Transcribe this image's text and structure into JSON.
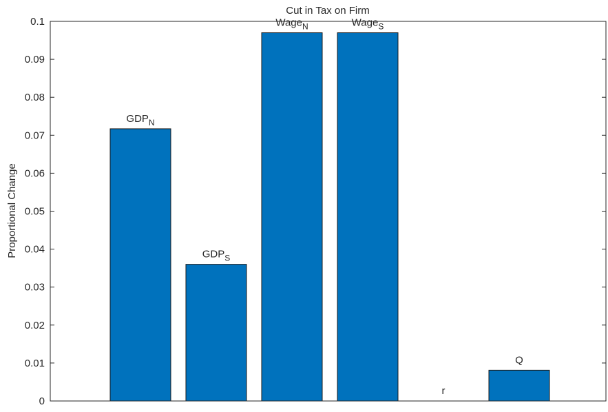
{
  "chart_data": {
    "type": "bar",
    "title": "Cut in Tax on Firm",
    "y_label": "Proportional Change",
    "categories": [
      null,
      null,
      null,
      null,
      null,
      null
    ],
    "values": [
      0.0717,
      0.036,
      0.097,
      0.097,
      0,
      0.0081
    ],
    "label_texts": [
      "GDP",
      "GDP",
      "Wage",
      "Wage",
      "r",
      "Q"
    ],
    "label_subscripts": [
      "N",
      "S",
      "N",
      "S",
      null,
      null
    ],
    "color": "#0072bd",
    "ylim": [
      0,
      0.1
    ],
    "yticks": [
      0,
      0.01,
      0.02,
      0.03,
      0.04,
      0.05,
      0.06,
      0.07,
      0.08,
      0.09,
      0.1
    ],
    "grid": false
  }
}
